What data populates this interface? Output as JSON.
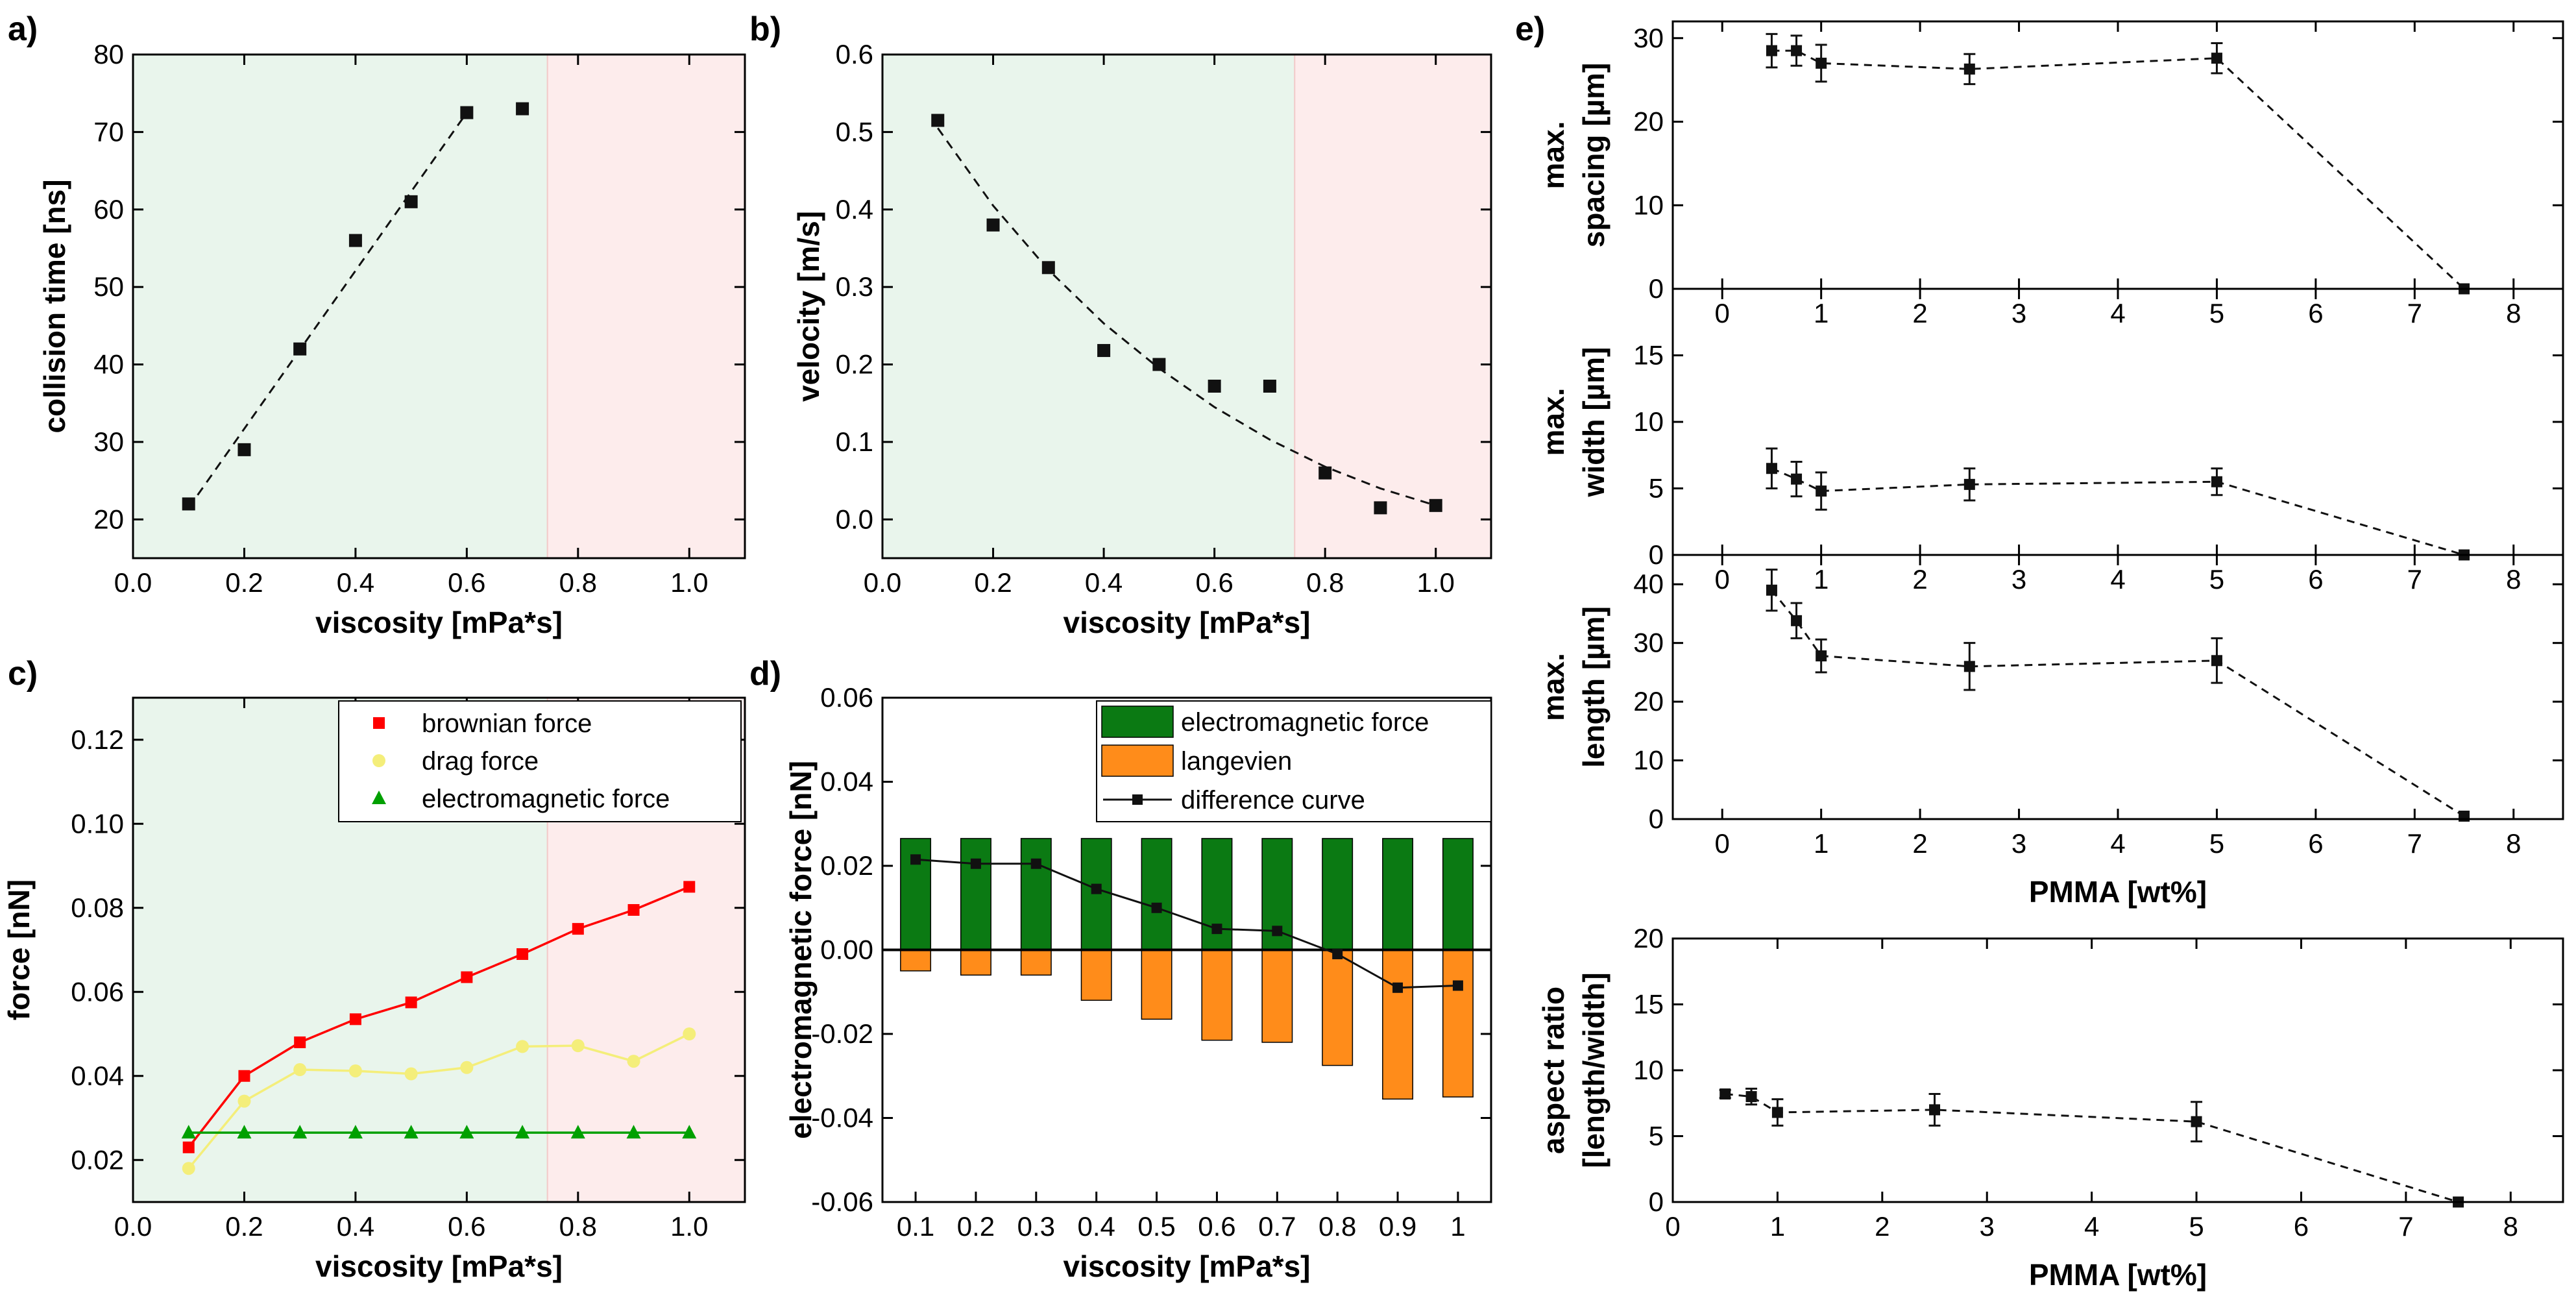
{
  "colors": {
    "green_zone": "#e9f5ec",
    "red_zone": "#fdecec",
    "brownian": "#ff0000",
    "drag": "#f4ee7a",
    "electromagnetic": "#00a000",
    "bar_green": "#0b7a13",
    "bar_orange": "#ff8c1a",
    "marker": "#111111"
  },
  "chart_data": [
    {
      "id": "a",
      "panel_label": "a)",
      "type": "scatter",
      "xlabel": "viscosity [mPa*s]",
      "ylabel": "collision time [ns]",
      "xlim": [
        0.0,
        1.1
      ],
      "ylim": [
        15,
        80
      ],
      "xticks": [
        0.0,
        0.2,
        0.4,
        0.6,
        0.8,
        1.0
      ],
      "xtick_labels": [
        "0.0",
        "0.2",
        "0.4",
        "0.6",
        "0.8",
        "1.0"
      ],
      "yticks": [
        20,
        30,
        40,
        50,
        60,
        70,
        80
      ],
      "ytick_labels": [
        "20",
        "30",
        "40",
        "50",
        "60",
        "70",
        "80"
      ],
      "zones": [
        {
          "from": 0.0,
          "to": 0.745,
          "color_key": "green_zone"
        },
        {
          "from": 0.745,
          "to": 1.1,
          "color_key": "red_zone"
        }
      ],
      "x": [
        0.1,
        0.2,
        0.3,
        0.4,
        0.5,
        0.6,
        0.7
      ],
      "y": [
        22,
        29,
        42,
        56,
        61,
        72.5,
        73
      ],
      "fit": {
        "style": "dashed",
        "x": [
          0.1,
          0.6
        ],
        "y": [
          21.5,
          72.5
        ]
      }
    },
    {
      "id": "b",
      "panel_label": "b)",
      "type": "scatter",
      "xlabel": "viscosity [mPa*s]",
      "ylabel": "velocity [m/s]",
      "xlim": [
        0.0,
        1.1
      ],
      "ylim": [
        -0.05,
        0.6
      ],
      "xticks": [
        0.0,
        0.2,
        0.4,
        0.6,
        0.8,
        1.0
      ],
      "xtick_labels": [
        "0.0",
        "0.2",
        "0.4",
        "0.6",
        "0.8",
        "1.0"
      ],
      "yticks": [
        0.0,
        0.1,
        0.2,
        0.3,
        0.4,
        0.5,
        0.6
      ],
      "ytick_labels": [
        "0.0",
        "0.1",
        "0.2",
        "0.3",
        "0.4",
        "0.5",
        "0.6"
      ],
      "zones": [
        {
          "from": 0.0,
          "to": 0.745,
          "color_key": "green_zone"
        },
        {
          "from": 0.745,
          "to": 1.1,
          "color_key": "red_zone"
        }
      ],
      "x": [
        0.1,
        0.2,
        0.3,
        0.4,
        0.5,
        0.6,
        0.7,
        0.8,
        0.9,
        1.0
      ],
      "y": [
        0.515,
        0.38,
        0.325,
        0.218,
        0.2,
        0.172,
        0.172,
        0.06,
        0.015,
        0.018
      ],
      "fit": {
        "style": "dashed",
        "x": [
          0.1,
          0.2,
          0.3,
          0.4,
          0.5,
          0.6,
          0.7,
          0.8,
          0.9,
          1.0
        ],
        "y": [
          0.505,
          0.405,
          0.322,
          0.253,
          0.195,
          0.145,
          0.103,
          0.068,
          0.04,
          0.018
        ]
      }
    },
    {
      "id": "c",
      "panel_label": "c)",
      "type": "line",
      "xlabel": "viscosity [mPa*s]",
      "ylabel": "force [nN]",
      "xlim": [
        0.0,
        1.1
      ],
      "ylim": [
        0.01,
        0.13
      ],
      "xticks": [
        0.0,
        0.2,
        0.4,
        0.6,
        0.8,
        1.0
      ],
      "xtick_labels": [
        "0.0",
        "0.2",
        "0.4",
        "0.6",
        "0.8",
        "1.0"
      ],
      "yticks": [
        0.02,
        0.04,
        0.06,
        0.08,
        0.1,
        0.12
      ],
      "ytick_labels": [
        "0.02",
        "0.04",
        "0.06",
        "0.08",
        "0.10",
        "0.12"
      ],
      "zones": [
        {
          "from": 0.0,
          "to": 0.745,
          "color_key": "green_zone"
        },
        {
          "from": 0.745,
          "to": 1.1,
          "color_key": "red_zone"
        }
      ],
      "x": [
        0.1,
        0.2,
        0.3,
        0.4,
        0.5,
        0.6,
        0.7,
        0.8,
        0.9,
        1.0
      ],
      "series": [
        {
          "name": "brownian force",
          "marker": "square",
          "color_key": "brownian",
          "values": [
            0.023,
            0.04,
            0.048,
            0.0535,
            0.0575,
            0.0635,
            0.069,
            0.075,
            0.0795,
            0.085
          ]
        },
        {
          "name": "drag force",
          "marker": "circle",
          "color_key": "drag",
          "values": [
            0.018,
            0.034,
            0.0415,
            0.0412,
            0.0405,
            0.042,
            0.047,
            0.0472,
            0.0435,
            0.05
          ]
        },
        {
          "name": "electromagnetic force",
          "marker": "triangle",
          "color_key": "electromagnetic",
          "values": [
            0.0265,
            0.0265,
            0.0265,
            0.0265,
            0.0265,
            0.0265,
            0.0265,
            0.0265,
            0.0265,
            0.0265
          ]
        }
      ],
      "legend_position": "top-right"
    },
    {
      "id": "d",
      "panel_label": "d)",
      "type": "bar",
      "xlabel": "viscosity [mPa*s]",
      "ylabel": "electromagnetic force [nN]",
      "categories": [
        "0.1",
        "0.2",
        "0.3",
        "0.4",
        "0.5",
        "0.6",
        "0.7",
        "0.8",
        "0.9",
        "1"
      ],
      "ylim": [
        -0.06,
        0.06
      ],
      "yticks": [
        -0.06,
        -0.04,
        -0.02,
        0.0,
        0.02,
        0.04,
        0.06
      ],
      "ytick_labels": [
        "-0.06",
        "-0.04",
        "-0.02",
        "0.00",
        "0.02",
        "0.04",
        "0.06"
      ],
      "series": [
        {
          "name": "electromagnetic force",
          "kind": "bar",
          "color_key": "bar_green",
          "values": [
            0.0265,
            0.0265,
            0.0265,
            0.0265,
            0.0265,
            0.0265,
            0.0265,
            0.0265,
            0.0265,
            0.0265
          ]
        },
        {
          "name": "langevien",
          "kind": "bar",
          "color_key": "bar_orange",
          "values": [
            -0.005,
            -0.006,
            -0.006,
            -0.012,
            -0.0165,
            -0.0215,
            -0.022,
            -0.0275,
            -0.0355,
            -0.035
          ]
        },
        {
          "name": "difference curve",
          "kind": "line",
          "color_key": "marker",
          "values": [
            0.0215,
            0.0205,
            0.0205,
            0.0145,
            0.01,
            0.005,
            0.0045,
            -0.001,
            -0.009,
            -0.0085
          ]
        }
      ],
      "legend_position": "top-right"
    },
    {
      "id": "e1",
      "panel_label": "e)",
      "type": "scatter",
      "xlabel": "",
      "ylabel_lines": [
        "max.",
        "spacing [µm]"
      ],
      "xlim": [
        -0.5,
        8.5
      ],
      "ylim": [
        0,
        32
      ],
      "xticks": [
        0,
        1,
        2,
        3,
        4,
        5,
        6,
        7,
        8
      ],
      "xtick_labels": [
        "0",
        "1",
        "2",
        "3",
        "4",
        "5",
        "6",
        "7",
        "8"
      ],
      "yticks": [
        0,
        10,
        20,
        30
      ],
      "ytick_labels": [
        "0",
        "10",
        "20",
        "30"
      ],
      "x": [
        0.5,
        0.75,
        1.0,
        2.5,
        5.0,
        7.5
      ],
      "y": [
        28.5,
        28.5,
        27.0,
        26.3,
        27.6,
        0.0
      ],
      "err": [
        2.0,
        1.8,
        2.2,
        1.8,
        1.8,
        0.0
      ]
    },
    {
      "id": "e2",
      "panel_label": "",
      "type": "scatter",
      "xlabel": "",
      "ylabel_lines": [
        "max.",
        "width [µm]"
      ],
      "xlim": [
        -0.5,
        8.5
      ],
      "ylim": [
        0,
        20
      ],
      "xticks": [
        0,
        1,
        2,
        3,
        4,
        5,
        6,
        7,
        8
      ],
      "xtick_labels": [
        "0",
        "1",
        "2",
        "3",
        "4",
        "5",
        "6",
        "7",
        "8"
      ],
      "yticks": [
        0,
        5,
        10,
        15
      ],
      "ytick_labels": [
        "0",
        "5",
        "10",
        "15"
      ],
      "x": [
        0.5,
        0.75,
        1.0,
        2.5,
        5.0,
        7.5
      ],
      "y": [
        6.5,
        5.7,
        4.8,
        5.3,
        5.5,
        0.0
      ],
      "err": [
        1.5,
        1.3,
        1.4,
        1.2,
        1.0,
        0.0
      ]
    },
    {
      "id": "e3",
      "panel_label": "",
      "type": "scatter",
      "xlabel": "PMMA [wt%]",
      "ylabel_lines": [
        "max.",
        "length [µm]"
      ],
      "xlim": [
        -0.5,
        8.5
      ],
      "ylim": [
        0,
        45
      ],
      "xticks": [
        0,
        1,
        2,
        3,
        4,
        5,
        6,
        7,
        8
      ],
      "xtick_labels": [
        "0",
        "1",
        "2",
        "3",
        "4",
        "5",
        "6",
        "7",
        "8"
      ],
      "yticks": [
        0,
        10,
        20,
        30,
        40
      ],
      "ytick_labels": [
        "0",
        "10",
        "20",
        "30",
        "40"
      ],
      "x": [
        0.5,
        0.75,
        1.0,
        2.5,
        5.0,
        7.5
      ],
      "y": [
        39.0,
        33.8,
        27.8,
        26.0,
        27.0,
        0.5
      ],
      "err": [
        3.5,
        3.0,
        2.8,
        4.0,
        3.8,
        0.0
      ]
    },
    {
      "id": "e4",
      "panel_label": "",
      "type": "scatter",
      "xlabel": "PMMA [wt%]",
      "ylabel_lines": [
        "aspect ratio",
        "[length/width]"
      ],
      "xlim": [
        0,
        8.5
      ],
      "ylim": [
        0,
        20
      ],
      "xticks": [
        0,
        1,
        2,
        3,
        4,
        5,
        6,
        7,
        8
      ],
      "xtick_labels": [
        "0",
        "1",
        "2",
        "3",
        "4",
        "5",
        "6",
        "7",
        "8"
      ],
      "yticks": [
        0,
        5,
        10,
        15,
        20
      ],
      "ytick_labels": [
        "0",
        "5",
        "10",
        "15",
        "20"
      ],
      "x": [
        0.5,
        0.75,
        1.0,
        2.5,
        5.0,
        7.5
      ],
      "y": [
        8.2,
        8.0,
        6.8,
        7.0,
        6.1,
        0.0
      ],
      "err": [
        0.3,
        0.6,
        1.0,
        1.2,
        1.5,
        0.0
      ]
    }
  ]
}
